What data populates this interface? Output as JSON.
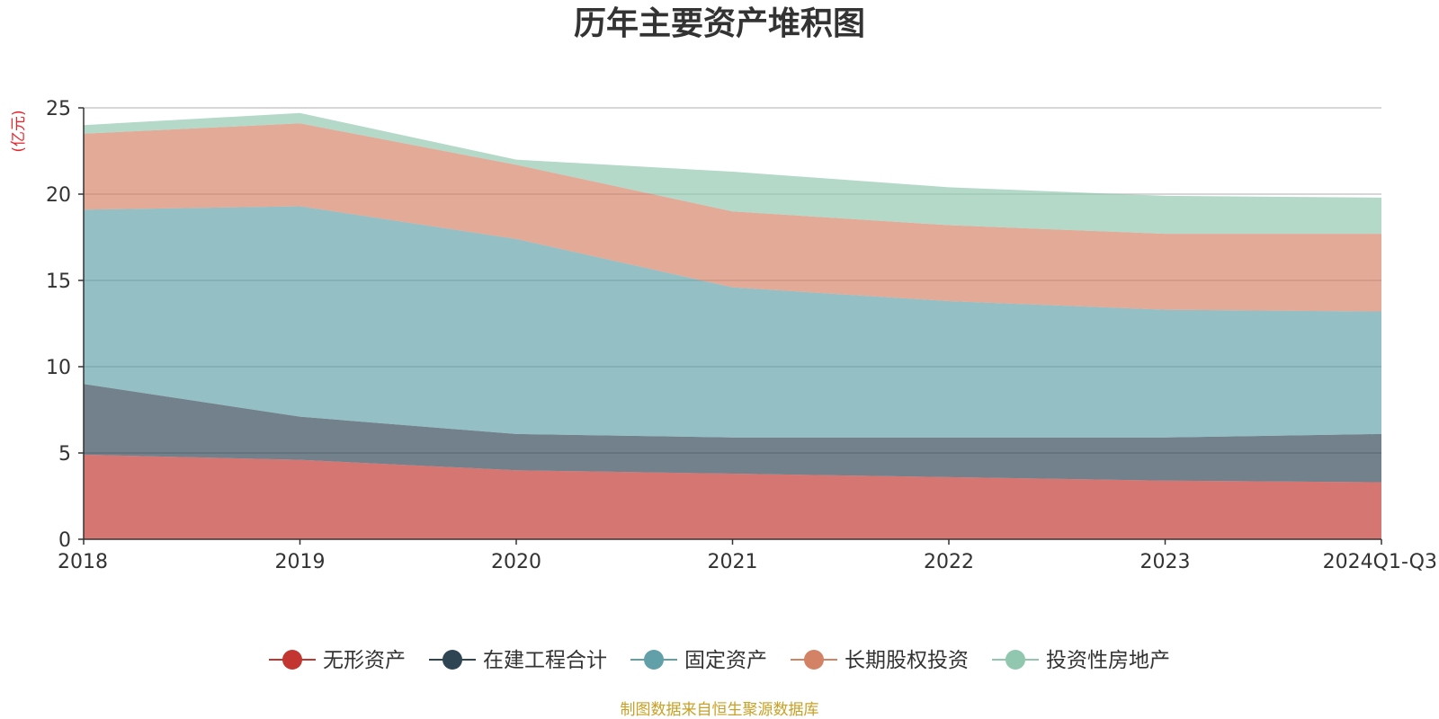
{
  "chart_data": {
    "type": "area",
    "stacked": true,
    "title": "历年主要资产堆积图",
    "ylabel": "(亿元)",
    "xlabel": "",
    "categories": [
      "2018",
      "2019",
      "2020",
      "2021",
      "2022",
      "2023",
      "2024Q1-Q3"
    ],
    "ylim": [
      0,
      25
    ],
    "yticks": [
      0,
      5,
      10,
      15,
      20,
      25
    ],
    "grid": true,
    "legend_position": "bottom",
    "series": [
      {
        "name": "无形资产",
        "color": "#c23531",
        "values": [
          4.9,
          4.6,
          4.0,
          3.8,
          3.6,
          3.4,
          3.3
        ]
      },
      {
        "name": "在建工程合计",
        "color": "#2f4554",
        "values": [
          4.1,
          2.5,
          2.1,
          2.1,
          2.3,
          2.5,
          2.8
        ]
      },
      {
        "name": "固定资产",
        "color": "#61a0a8",
        "values": [
          10.1,
          12.2,
          11.3,
          8.7,
          7.9,
          7.4,
          7.1
        ]
      },
      {
        "name": "长期股权投资",
        "color": "#d48265",
        "values": [
          4.4,
          4.8,
          4.3,
          4.4,
          4.4,
          4.4,
          4.5
        ]
      },
      {
        "name": "投资性房地产",
        "color": "#91c7ae",
        "values": [
          0.5,
          0.6,
          0.3,
          2.3,
          2.2,
          2.2,
          2.1
        ]
      }
    ],
    "source": "制图数据来自恒生聚源数据库"
  }
}
